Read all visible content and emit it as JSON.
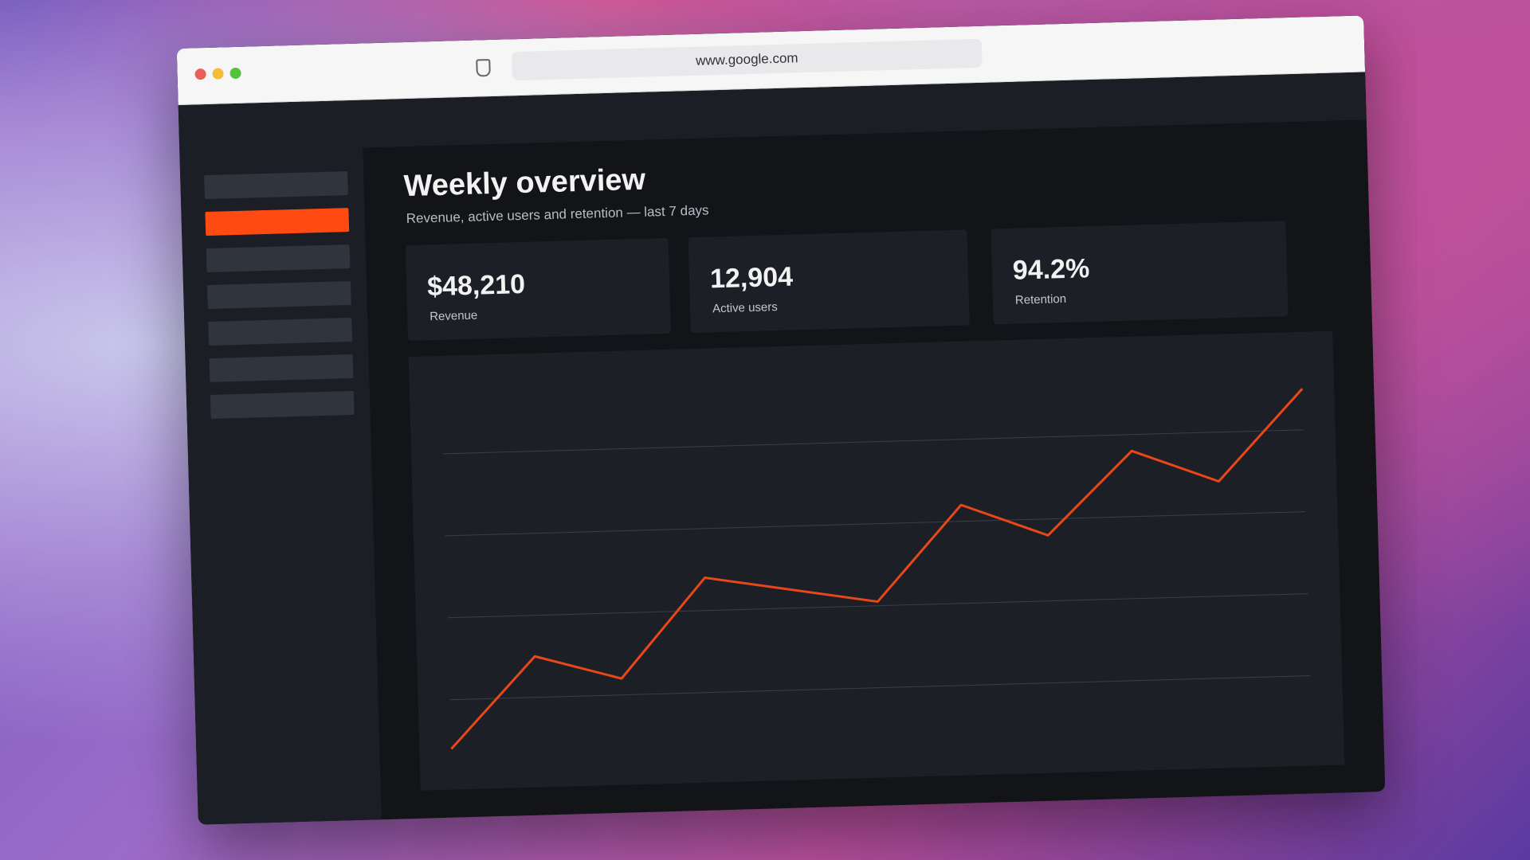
{
  "browser": {
    "url": "www.google.com"
  },
  "dashboard": {
    "title": "Weekly overview",
    "subtitle": "Revenue, active users and retention — last 7 days",
    "kpis": [
      {
        "value": "$48,210",
        "label": "Revenue"
      },
      {
        "value": "12,904",
        "label": "Active users"
      },
      {
        "value": "94.2%",
        "label": "Retention"
      }
    ]
  },
  "chart_data": {
    "type": "line",
    "x": [
      0,
      1,
      2,
      3,
      5,
      6,
      7,
      8,
      9,
      10
    ],
    "values": [
      8,
      30,
      24,
      48,
      41,
      64,
      56,
      76,
      68,
      90
    ],
    "color": "#e8471a",
    "xlim": [
      0,
      10
    ],
    "ylim": [
      0,
      100
    ],
    "yticks": [
      20,
      40,
      60,
      80
    ],
    "grid": true
  }
}
